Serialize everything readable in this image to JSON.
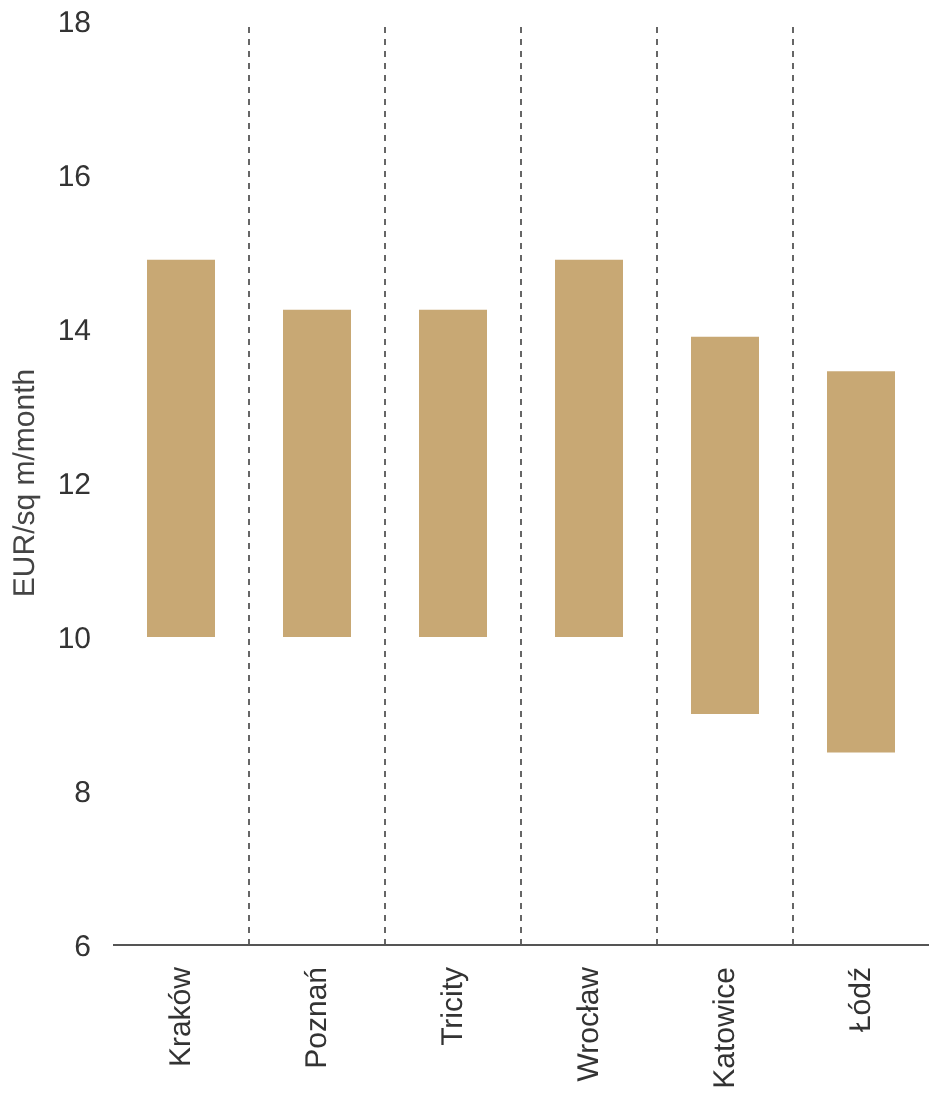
{
  "chart_data": {
    "type": "bar",
    "ylabel": "EUR/sq m/month",
    "categories": [
      "Kraków",
      "Poznań",
      "Tricity",
      "Wrocław",
      "Katowice",
      "Łódź"
    ],
    "values": [
      4.9,
      4.25,
      4.25,
      4.9,
      4.9,
      4.95
    ],
    "base": [
      10,
      10,
      10,
      10,
      9,
      8.5
    ],
    "color": "#c8a874",
    "ylim": [
      6,
      18
    ],
    "yticks": [
      6,
      8,
      10,
      12,
      14,
      16,
      18
    ],
    "grid": "x",
    "line_style": "dashed"
  }
}
